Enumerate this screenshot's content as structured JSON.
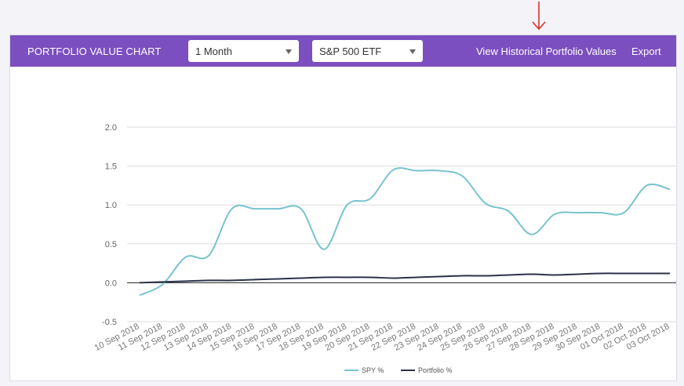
{
  "header": {
    "title": "PORTFOLIO VALUE CHART",
    "period_select": "1 Month",
    "benchmark_select": "S&P 500 ETF",
    "historical_link": "View Historical Portfolio Values",
    "export_link": "Export"
  },
  "colors": {
    "header_bg": "#7b4fbf",
    "spy": "#78c3cf",
    "portfolio": "#2b3348",
    "annotation_arrow": "#d9322b"
  },
  "icons": {
    "annotation": "red-down-arrow-icon",
    "dropdown": "caret-down-icon"
  },
  "chart_data": {
    "type": "line",
    "x": [
      "10 Sep 2018",
      "11 Sep 2018",
      "12 Sep 2018",
      "13 Sep 2018",
      "14 Sep 2018",
      "15 Sep 2018",
      "16 Sep 2018",
      "17 Sep 2018",
      "18 Sep 2018",
      "19 Sep 2018",
      "20 Sep 2018",
      "21 Sep 2018",
      "22 Sep 2018",
      "23 Sep 2018",
      "24 Sep 2018",
      "25 Sep 2018",
      "26 Sep 2018",
      "27 Sep 2018",
      "28 Sep 2018",
      "29 Sep 2018",
      "30 Sep 2018",
      "01 Oct 2018",
      "02 Oct 2018",
      "03 Oct 2018"
    ],
    "series": [
      {
        "name": "SPY %",
        "values": [
          -0.16,
          -0.02,
          0.33,
          0.35,
          0.95,
          0.95,
          0.95,
          0.95,
          0.43,
          1.0,
          1.08,
          1.45,
          1.44,
          1.44,
          1.37,
          1.02,
          0.92,
          0.62,
          0.88,
          0.9,
          0.9,
          0.9,
          1.25,
          1.2
        ]
      },
      {
        "name": "Portfolio %",
        "values": [
          0.0,
          0.01,
          0.02,
          0.03,
          0.03,
          0.04,
          0.05,
          0.06,
          0.07,
          0.07,
          0.07,
          0.06,
          0.07,
          0.08,
          0.09,
          0.09,
          0.1,
          0.11,
          0.1,
          0.11,
          0.12,
          0.12,
          0.12,
          0.12
        ]
      }
    ],
    "yticks": [
      "2.0",
      "1.5",
      "1.0",
      "0.5",
      "0.0",
      "-0.5"
    ],
    "ylim": [
      -0.5,
      2.0
    ],
    "grid": true,
    "legend": "bottom-center"
  }
}
